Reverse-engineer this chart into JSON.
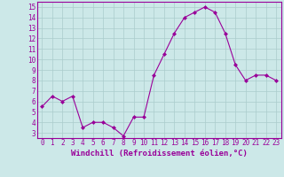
{
  "x": [
    0,
    1,
    2,
    3,
    4,
    5,
    6,
    7,
    8,
    9,
    10,
    11,
    12,
    13,
    14,
    15,
    16,
    17,
    18,
    19,
    20,
    21,
    22,
    23
  ],
  "y": [
    5.5,
    6.5,
    6.0,
    6.5,
    3.5,
    4.0,
    4.0,
    3.5,
    2.7,
    4.5,
    4.5,
    8.5,
    10.5,
    12.5,
    14.0,
    14.5,
    15.0,
    14.5,
    12.5,
    9.5,
    8.0,
    8.5,
    8.5,
    8.0
  ],
  "line_color": "#990099",
  "marker": "D",
  "marker_size": 2,
  "bg_color": "#cce8e8",
  "grid_color": "#aacccc",
  "xlabel": "Windchill (Refroidissement éolien,°C)",
  "xlim": [
    -0.5,
    23.5
  ],
  "ylim": [
    2.5,
    15.5
  ],
  "yticks": [
    3,
    4,
    5,
    6,
    7,
    8,
    9,
    10,
    11,
    12,
    13,
    14,
    15
  ],
  "xticks": [
    0,
    1,
    2,
    3,
    4,
    5,
    6,
    7,
    8,
    9,
    10,
    11,
    12,
    13,
    14,
    15,
    16,
    17,
    18,
    19,
    20,
    21,
    22,
    23
  ],
  "xlabel_fontsize": 6.5,
  "tick_fontsize": 5.5,
  "tick_color": "#990099",
  "spine_color": "#990099",
  "line_width": 0.8
}
